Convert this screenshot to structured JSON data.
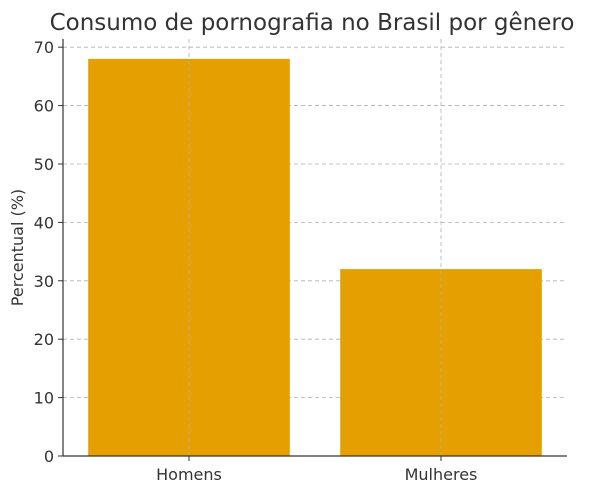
{
  "chart_data": {
    "type": "bar",
    "title": "Consumo de pornografia no Brasil por gênero",
    "xlabel": "",
    "ylabel": "Percentual (%)",
    "categories": [
      "Homens",
      "Mulheres"
    ],
    "values": [
      68,
      32
    ],
    "ylim": [
      0,
      71.4
    ],
    "yticks": [
      0,
      10,
      20,
      30,
      40,
      50,
      60,
      70
    ],
    "grid": true,
    "bar_color": "#E5A000"
  }
}
